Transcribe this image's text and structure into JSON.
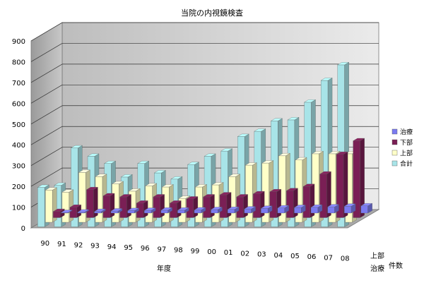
{
  "chart_data": {
    "type": "bar",
    "title": "当院の内視鏡検査",
    "xlabel": "年度",
    "ylabel": "件数",
    "ylim": [
      0,
      900
    ],
    "yticks": [
      0,
      100,
      200,
      300,
      400,
      500,
      600,
      700,
      800,
      900
    ],
    "categories": [
      "90",
      "91",
      "92",
      "93",
      "94",
      "95",
      "96",
      "97",
      "98",
      "99",
      "00",
      "01",
      "02",
      "03",
      "04",
      "05",
      "06",
      "07",
      "08"
    ],
    "depth_labels": [
      "治療",
      "上部"
    ],
    "grid": true,
    "legend_position": "right",
    "series": [
      {
        "name": "治療",
        "color": "#7b7bf0",
        "values": [
          3,
          5,
          8,
          10,
          12,
          13,
          14,
          14,
          15,
          17,
          18,
          20,
          23,
          25,
          27,
          28,
          30,
          33,
          35
        ]
      },
      {
        "name": "下部",
        "color": "#7a1f55",
        "values": [
          30,
          50,
          135,
          105,
          100,
          70,
          100,
          70,
          90,
          100,
          110,
          100,
          115,
          125,
          130,
          150,
          210,
          305,
          370
        ]
      },
      {
        "name": "上部",
        "color": "#ffffc8",
        "values": [
          155,
          145,
          240,
          220,
          185,
          150,
          175,
          170,
          115,
          170,
          180,
          220,
          275,
          285,
          320,
          300,
          330,
          330,
          330
        ]
      },
      {
        "name": "合計",
        "color": "#a8e4e8",
        "values": [
          190,
          200,
          380,
          340,
          305,
          240,
          305,
          260,
          230,
          300,
          340,
          365,
          435,
          460,
          510,
          515,
          600,
          705,
          780
        ]
      }
    ]
  }
}
